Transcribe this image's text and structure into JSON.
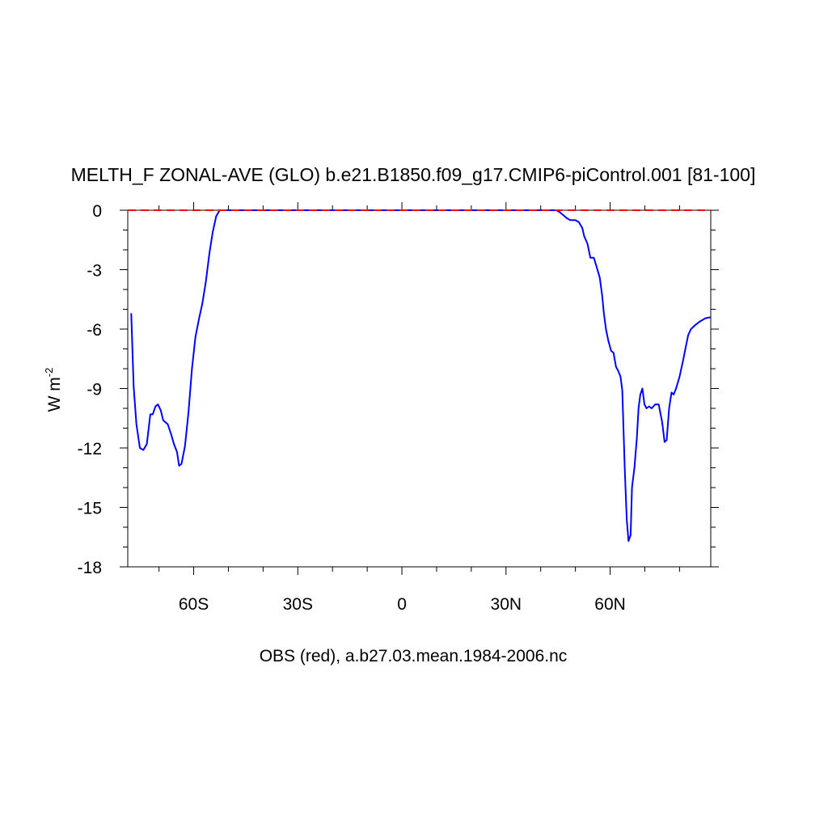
{
  "chart_data": {
    "type": "line",
    "title": "MELTH_F ZONAL-AVE (GLO) b.e21.B1850.f09_g17.CMIP6-piControl.001 [81-100]",
    "ylabel": "W m",
    "ylabel_superscript": "-2",
    "footer": "OBS (red), a.b27.03.mean.1984-2006.nc",
    "xlim": [
      -79,
      89
    ],
    "ylim": [
      -18,
      0
    ],
    "x_ticks": [
      {
        "value": -60,
        "label": "60S"
      },
      {
        "value": -30,
        "label": "30S"
      },
      {
        "value": 0,
        "label": "0"
      },
      {
        "value": 30,
        "label": "30N"
      },
      {
        "value": 60,
        "label": "60N"
      }
    ],
    "y_ticks": [
      {
        "value": 0,
        "label": "0"
      },
      {
        "value": -3,
        "label": "-3"
      },
      {
        "value": -6,
        "label": "-6"
      },
      {
        "value": -9,
        "label": "-9"
      },
      {
        "value": -12,
        "label": "-12"
      },
      {
        "value": -15,
        "label": "-15"
      },
      {
        "value": -18,
        "label": "-18"
      }
    ],
    "grid": false,
    "series": [
      {
        "color": "#0000ff",
        "style": "solid",
        "points": [
          [
            -78,
            -5.2
          ],
          [
            -77.3,
            -8.9
          ],
          [
            -76.5,
            -10.8
          ],
          [
            -75.5,
            -12.0
          ],
          [
            -74.5,
            -12.1
          ],
          [
            -73.5,
            -11.8
          ],
          [
            -72.5,
            -10.3
          ],
          [
            -71.8,
            -10.3
          ],
          [
            -71.0,
            -9.9
          ],
          [
            -70.3,
            -9.8
          ],
          [
            -69.5,
            -10.1
          ],
          [
            -68.8,
            -10.6
          ],
          [
            -67.5,
            -10.8
          ],
          [
            -66.5,
            -11.3
          ],
          [
            -65.7,
            -11.8
          ],
          [
            -64.8,
            -12.2
          ],
          [
            -64.2,
            -12.9
          ],
          [
            -63.5,
            -12.8
          ],
          [
            -62.5,
            -11.9
          ],
          [
            -61.5,
            -10.2
          ],
          [
            -60.5,
            -8.0
          ],
          [
            -59.5,
            -6.4
          ],
          [
            -58.5,
            -5.5
          ],
          [
            -57.5,
            -4.7
          ],
          [
            -56.5,
            -3.6
          ],
          [
            -55.5,
            -2.2
          ],
          [
            -54.5,
            -1.1
          ],
          [
            -53.5,
            -0.3
          ],
          [
            -52.5,
            0.0
          ],
          [
            -51.0,
            0.0
          ],
          [
            -40,
            0.0
          ],
          [
            -20,
            0.0
          ],
          [
            0,
            0.0
          ],
          [
            20,
            0.0
          ],
          [
            40,
            0.0
          ],
          [
            44.5,
            0.0
          ],
          [
            45.5,
            -0.1
          ],
          [
            47.5,
            -0.4
          ],
          [
            48.5,
            -0.5
          ],
          [
            50.0,
            -0.5
          ],
          [
            51.0,
            -0.6
          ],
          [
            52.0,
            -0.9
          ],
          [
            52.5,
            -1.3
          ],
          [
            53.5,
            -1.7
          ],
          [
            54.3,
            -2.4
          ],
          [
            55.3,
            -2.4
          ],
          [
            56.0,
            -2.8
          ],
          [
            57.0,
            -3.4
          ],
          [
            57.7,
            -4.3
          ],
          [
            58.2,
            -5.2
          ],
          [
            58.8,
            -6.0
          ],
          [
            59.5,
            -6.6
          ],
          [
            60.3,
            -7.1
          ],
          [
            61.0,
            -7.2
          ],
          [
            61.7,
            -7.9
          ],
          [
            62.3,
            -8.1
          ],
          [
            63.0,
            -8.4
          ],
          [
            63.5,
            -9.1
          ],
          [
            64.2,
            -13.0
          ],
          [
            64.8,
            -15.6
          ],
          [
            65.3,
            -16.7
          ],
          [
            65.9,
            -16.4
          ],
          [
            66.3,
            -14.0
          ],
          [
            67.0,
            -13.0
          ],
          [
            67.7,
            -11.5
          ],
          [
            68.2,
            -10.0
          ],
          [
            68.7,
            -9.3
          ],
          [
            69.3,
            -9.0
          ],
          [
            69.9,
            -9.8
          ],
          [
            70.5,
            -10.0
          ],
          [
            71.2,
            -9.9
          ],
          [
            72.0,
            -10.0
          ],
          [
            73.0,
            -9.8
          ],
          [
            74.0,
            -9.8
          ],
          [
            75.0,
            -10.7
          ],
          [
            75.7,
            -11.7
          ],
          [
            76.3,
            -11.6
          ],
          [
            77.0,
            -10.0
          ],
          [
            77.7,
            -9.2
          ],
          [
            78.3,
            -9.3
          ],
          [
            79.0,
            -9.0
          ],
          [
            80.0,
            -8.4
          ],
          [
            81.0,
            -7.6
          ],
          [
            81.8,
            -6.9
          ],
          [
            82.5,
            -6.3
          ],
          [
            83.3,
            -6.0
          ],
          [
            84.5,
            -5.8
          ],
          [
            86.0,
            -5.6
          ],
          [
            87.5,
            -5.45
          ],
          [
            89.0,
            -5.4
          ]
        ]
      },
      {
        "color": "#ff0000",
        "style": "dashed",
        "points": [
          [
            -79,
            0
          ],
          [
            89,
            0
          ]
        ]
      }
    ]
  }
}
